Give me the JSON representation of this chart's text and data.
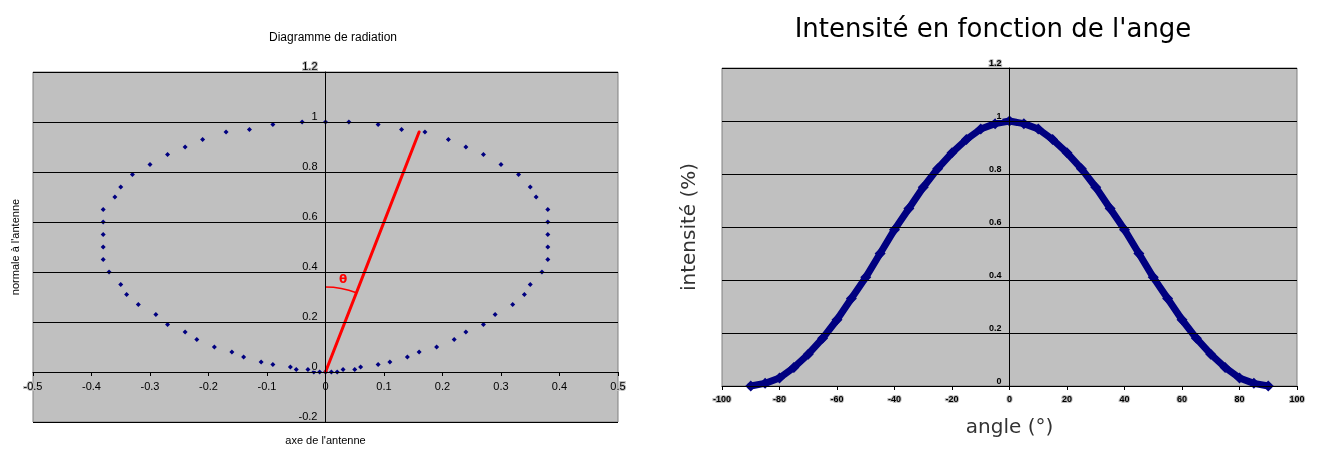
{
  "chart_data": [
    {
      "type": "line",
      "title": "Diagramme de radiation",
      "xlabel": "axe de l'antenne",
      "ylabel": "normale à l'antenne",
      "series": [
        {
          "type": "scatter",
          "color": "#000080",
          "x": [
            0,
            -0.01,
            -0.02,
            -0.03,
            -0.05,
            -0.06,
            -0.09,
            -0.11,
            -0.14,
            -0.16,
            -0.19,
            -0.22,
            -0.24,
            -0.27,
            -0.29,
            -0.32,
            -0.34,
            -0.35,
            -0.37,
            -0.38,
            -0.38,
            -0.38,
            -0.38,
            -0.38,
            -0.36,
            -0.35,
            -0.33,
            -0.3,
            -0.27,
            -0.24,
            -0.21,
            -0.17,
            -0.13,
            -0.09,
            -0.04,
            0,
            0.04,
            0.09,
            0.13,
            0.17,
            0.21,
            0.24,
            0.27,
            0.3,
            0.33,
            0.35,
            0.36,
            0.38,
            0.38,
            0.38,
            0.38,
            0.38,
            0.37,
            0.35,
            0.34,
            0.32,
            0.29,
            0.27,
            0.24,
            0.22,
            0.19,
            0.16,
            0.14,
            0.11,
            0.09,
            0.06,
            0.05,
            0.03,
            0.02,
            0.01
          ],
          "values": [
            0,
            0,
            0,
            0.01,
            0.01,
            0.02,
            0.03,
            0.04,
            0.06,
            0.08,
            0.1,
            0.13,
            0.16,
            0.19,
            0.23,
            0.27,
            0.31,
            0.35,
            0.4,
            0.45,
            0.5,
            0.55,
            0.6,
            0.65,
            0.7,
            0.74,
            0.79,
            0.83,
            0.87,
            0.9,
            0.93,
            0.96,
            0.97,
            0.99,
            1.0,
            1,
            1.0,
            0.99,
            0.97,
            0.96,
            0.93,
            0.9,
            0.87,
            0.83,
            0.79,
            0.74,
            0.7,
            0.65,
            0.6,
            0.55,
            0.5,
            0.45,
            0.4,
            0.35,
            0.31,
            0.27,
            0.23,
            0.19,
            0.16,
            0.13,
            0.1,
            0.08,
            0.06,
            0.04,
            0.03,
            0.02,
            0.01,
            0.01,
            0,
            0
          ],
          "marker": "diamond"
        },
        {
          "color": "#ff0000",
          "x": [
            0,
            0.16
          ],
          "values": [
            0,
            0.96
          ],
          "marker": "none"
        }
      ],
      "annotations": [
        "θ"
      ],
      "xlim": [
        -0.5,
        0.5
      ],
      "xticks": [
        -0.5,
        -0.4,
        -0.3,
        -0.2,
        -0.1,
        0,
        0.1,
        0.2,
        0.3,
        0.4,
        0.5
      ],
      "ylim": [
        -0.2,
        1.2
      ],
      "yticks": [
        -0.2,
        0,
        0.2,
        0.4,
        0.6,
        0.8,
        1,
        1.2
      ],
      "grid": "y"
    },
    {
      "type": "line",
      "title": "Intensité en fonction de l'ange",
      "xlabel": "angle (°)",
      "ylabel": "intensité (%)",
      "series": [
        {
          "color": "#000080",
          "x": [
            -90,
            -85,
            -80,
            -75,
            -70,
            -65,
            -60,
            -55,
            -50,
            -45,
            -40,
            -35,
            -30,
            -25,
            -20,
            -15,
            -10,
            -5,
            0,
            5,
            10,
            15,
            20,
            25,
            30,
            35,
            40,
            45,
            50,
            55,
            60,
            65,
            70,
            75,
            80,
            85,
            90
          ],
          "values": [
            0,
            0.01,
            0.03,
            0.07,
            0.12,
            0.18,
            0.25,
            0.33,
            0.41,
            0.5,
            0.59,
            0.67,
            0.75,
            0.82,
            0.88,
            0.93,
            0.97,
            0.99,
            1,
            0.99,
            0.97,
            0.93,
            0.88,
            0.82,
            0.75,
            0.67,
            0.59,
            0.5,
            0.41,
            0.33,
            0.25,
            0.18,
            0.12,
            0.07,
            0.03,
            0.01,
            0
          ],
          "marker": "diamond"
        }
      ],
      "xlim": [
        -100,
        100
      ],
      "xticks": [
        -100,
        -80,
        -60,
        -40,
        -20,
        0,
        20,
        40,
        60,
        80,
        100
      ],
      "ylim": [
        0,
        1.2
      ],
      "yticks": [
        0,
        0.2,
        0.4,
        0.6,
        0.8,
        1,
        1.2
      ],
      "grid": "y"
    }
  ]
}
